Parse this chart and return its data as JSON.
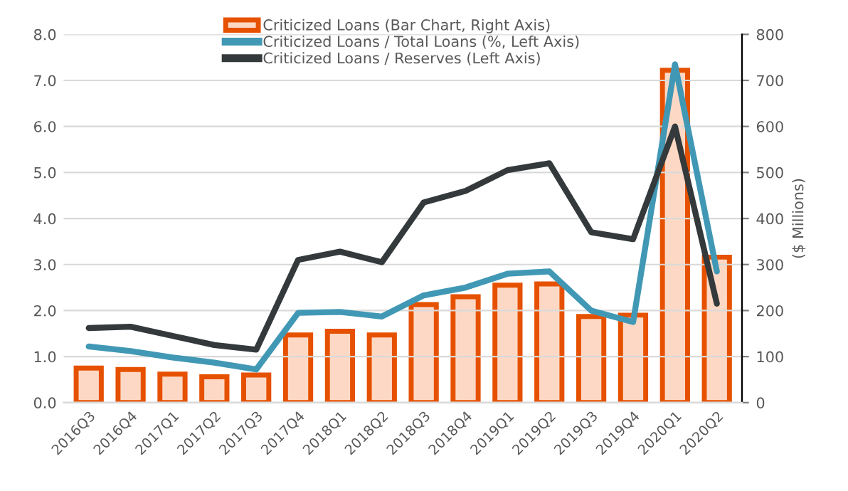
{
  "chart_data": {
    "type": "bar",
    "y2label": "($ Millions)",
    "categories": [
      "2016Q3",
      "2016Q4",
      "2017Q1",
      "2017Q2",
      "2017Q3",
      "2017Q4",
      "2018Q1",
      "2018Q2",
      "2018Q3",
      "2018Q4",
      "2019Q1",
      "2019Q2",
      "2019Q3",
      "2019Q4",
      "2020Q1",
      "2020Q2"
    ],
    "series": [
      {
        "name": "Criticized Loans (Bar Chart, Right Axis)",
        "axis": "y2",
        "color": "#e65100",
        "values": [
          75,
          72,
          62,
          56,
          60,
          147,
          155,
          147,
          213,
          230,
          255,
          258,
          187,
          190,
          722,
          316
        ]
      },
      {
        "name": "Criticized Loans / Total Loans (%, Left Axis)",
        "type": "line",
        "color": "#4198b5",
        "values": [
          1.22,
          1.12,
          0.98,
          0.87,
          0.72,
          1.95,
          1.97,
          1.87,
          2.33,
          2.5,
          2.8,
          2.85,
          2.0,
          1.75,
          7.35,
          2.85
        ]
      },
      {
        "name": "Criticized Loans / Reserves (Left Axis)",
        "type": "line",
        "color": "#343a3b",
        "values": [
          1.62,
          1.65,
          1.45,
          1.25,
          1.15,
          3.1,
          3.28,
          3.05,
          4.35,
          4.6,
          5.05,
          5.2,
          3.7,
          3.55,
          6.0,
          2.15
        ]
      }
    ],
    "ylim": [
      0,
      8
    ],
    "yticks": [
      {
        "value": 0,
        "label": "0.0"
      },
      {
        "value": 1,
        "label": "1.0"
      },
      {
        "value": 2,
        "label": "2.0"
      },
      {
        "value": 3,
        "label": "3.0"
      },
      {
        "value": 4,
        "label": "4.0"
      },
      {
        "value": 5,
        "label": "5.0"
      },
      {
        "value": 6,
        "label": "6.0"
      },
      {
        "value": 7,
        "label": "7.0"
      },
      {
        "value": 8,
        "label": "8.0"
      }
    ],
    "y2lim": [
      0,
      800
    ],
    "y2ticks": [
      0,
      100,
      200,
      300,
      400,
      500,
      600,
      700,
      800
    ],
    "grid": "y",
    "legend": "top"
  }
}
